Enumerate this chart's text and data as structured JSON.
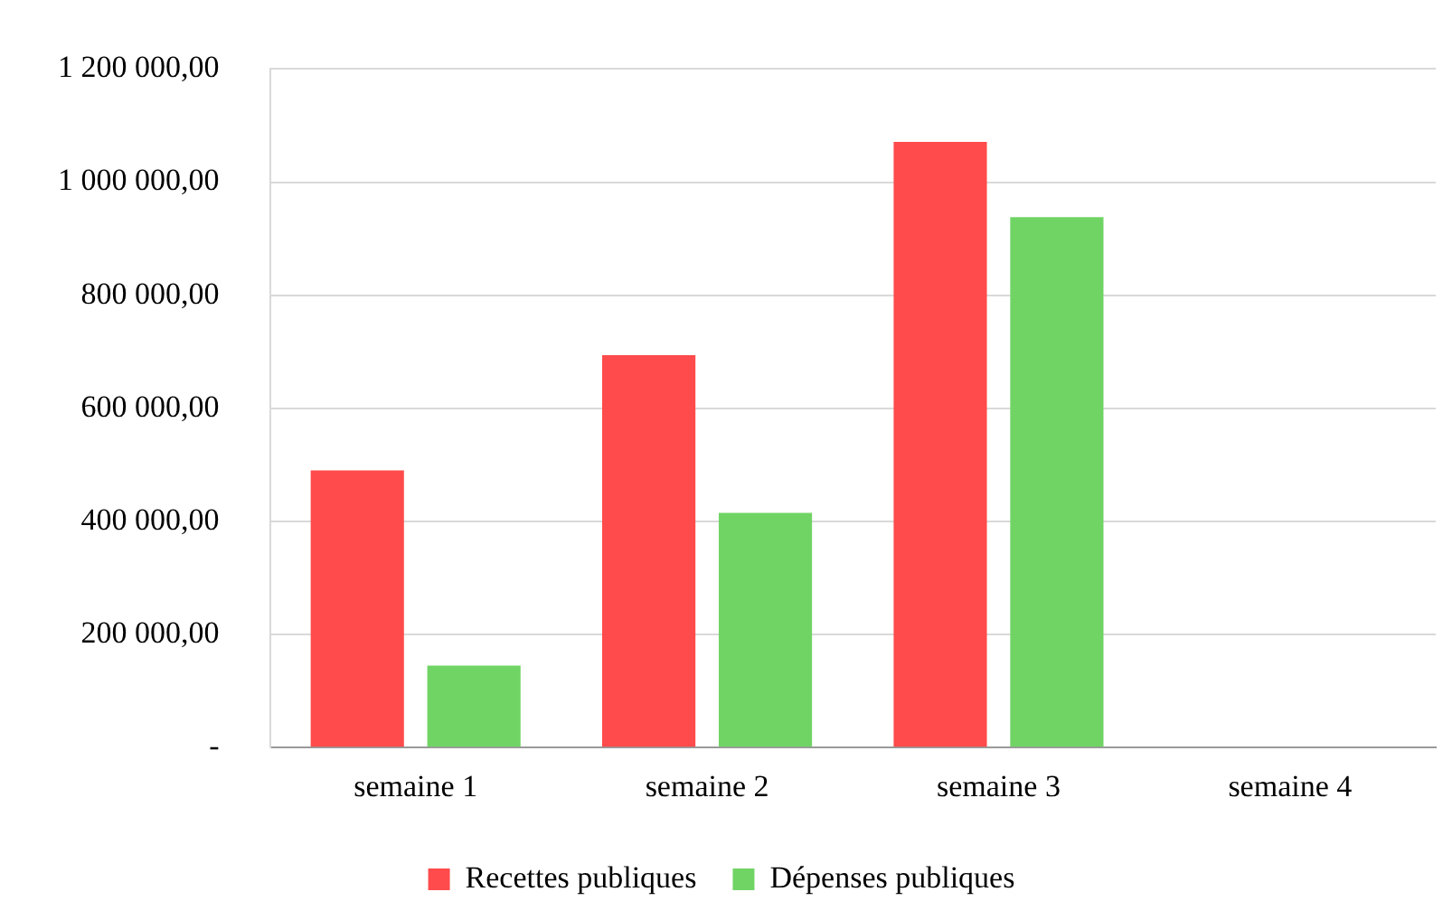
{
  "chart_data": {
    "type": "bar",
    "categories": [
      "semaine 1",
      "semaine 2",
      "semaine 3",
      "semaine 4"
    ],
    "series": [
      {
        "name": "Recettes publiques",
        "color": "#ff4b4b",
        "values": [
          490000,
          694000,
          1071000,
          null
        ]
      },
      {
        "name": "Dépenses publiques",
        "color": "#70d465",
        "values": [
          145000,
          415000,
          938000,
          null
        ]
      }
    ],
    "ylim": [
      0,
      1200000
    ],
    "yticks": [
      {
        "value": 0,
        "label": "-"
      },
      {
        "value": 200000,
        "label": "200 000,00"
      },
      {
        "value": 400000,
        "label": "400 000,00"
      },
      {
        "value": 600000,
        "label": "600 000,00"
      },
      {
        "value": 800000,
        "label": "800 000,00"
      },
      {
        "value": 1000000,
        "label": "1 000 000,00"
      },
      {
        "value": 1200000,
        "label": "1 200 000,00"
      }
    ],
    "grid": "y",
    "legend": "bottom"
  }
}
